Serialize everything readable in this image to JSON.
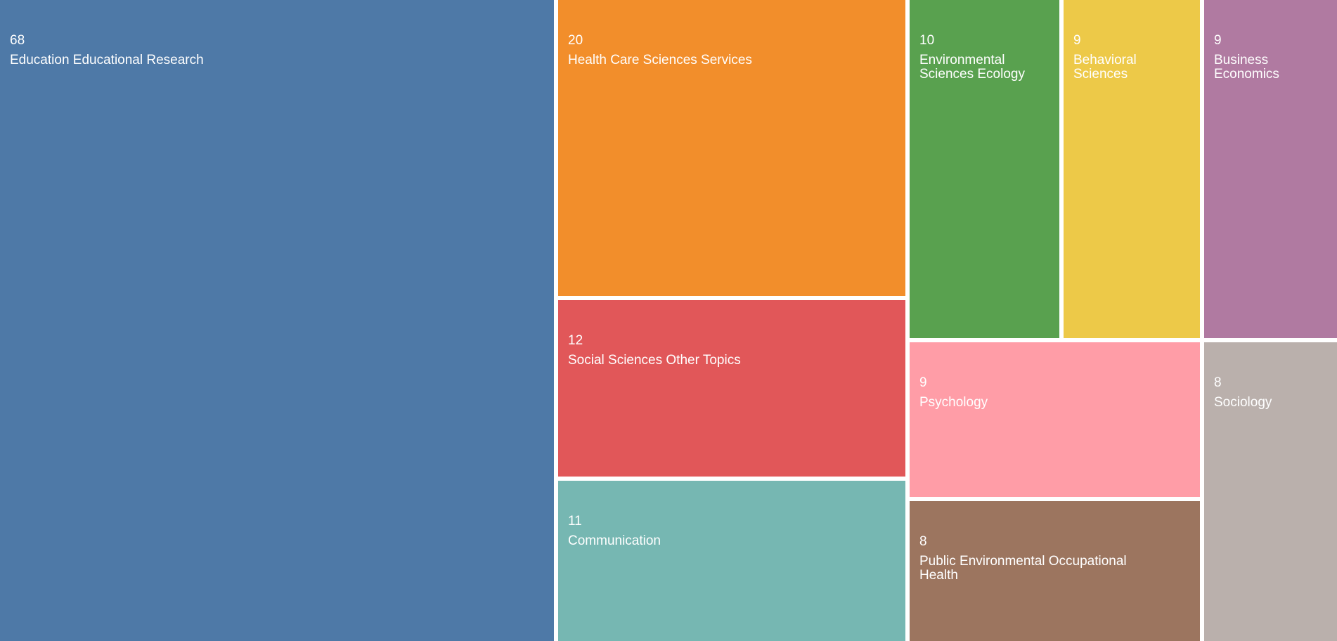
{
  "chart_data": {
    "type": "treemap",
    "title": "",
    "items": [
      {
        "label": "Education Educational Research",
        "value": 68,
        "color": "#4e79a7"
      },
      {
        "label": "Health Care Sciences Services",
        "value": 20,
        "color": "#f28e2b"
      },
      {
        "label": "Social Sciences Other Topics",
        "value": 12,
        "color": "#e15759"
      },
      {
        "label": "Communication",
        "value": 11,
        "color": "#76b7b2"
      },
      {
        "label": "Environmental\nSciences Ecology",
        "value": 10,
        "color": "#59a14f"
      },
      {
        "label": "Behavioral\nSciences",
        "value": 9,
        "color": "#edc948"
      },
      {
        "label": "Business\nEconomics",
        "value": 9,
        "color": "#b07aa1"
      },
      {
        "label": "Psychology",
        "value": 9,
        "color": "#ff9da7"
      },
      {
        "label": "Public Environmental Occupational\nHealth",
        "value": 8,
        "color": "#9c755f"
      },
      {
        "label": "Sociology",
        "value": 8,
        "color": "#bab0ac"
      }
    ]
  }
}
